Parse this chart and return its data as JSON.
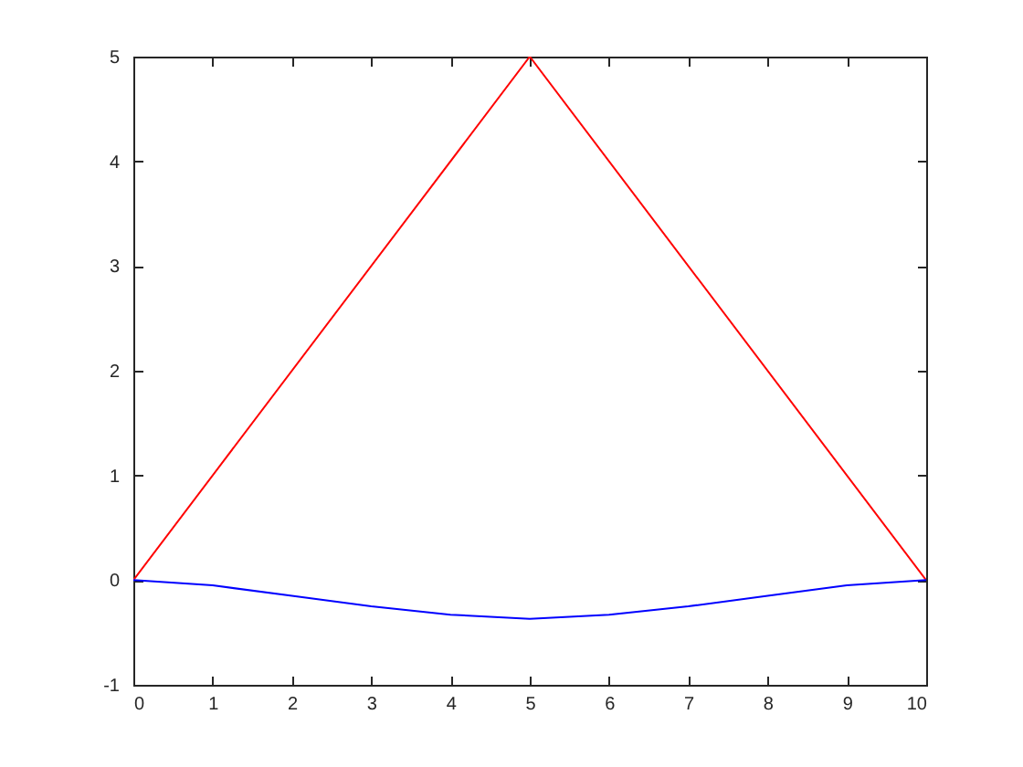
{
  "chart_data": {
    "type": "line",
    "series": [
      {
        "color": "#ff0000",
        "x": [
          0,
          5,
          10
        ],
        "values": [
          0,
          5,
          0
        ]
      },
      {
        "color": "#0000ff",
        "x": [
          0,
          1,
          2,
          3,
          4,
          5,
          6,
          7,
          8,
          9,
          10
        ],
        "values": [
          0,
          -0.05,
          -0.15,
          -0.25,
          -0.33,
          -0.37,
          -0.33,
          -0.25,
          -0.15,
          -0.05,
          0
        ]
      }
    ],
    "xlim": [
      0,
      10
    ],
    "xticks": [
      0,
      1,
      2,
      3,
      4,
      5,
      6,
      7,
      8,
      9,
      10
    ],
    "ylim": [
      -1,
      5
    ],
    "yticks": [
      -1,
      0,
      1,
      2,
      3,
      4,
      5
    ]
  }
}
